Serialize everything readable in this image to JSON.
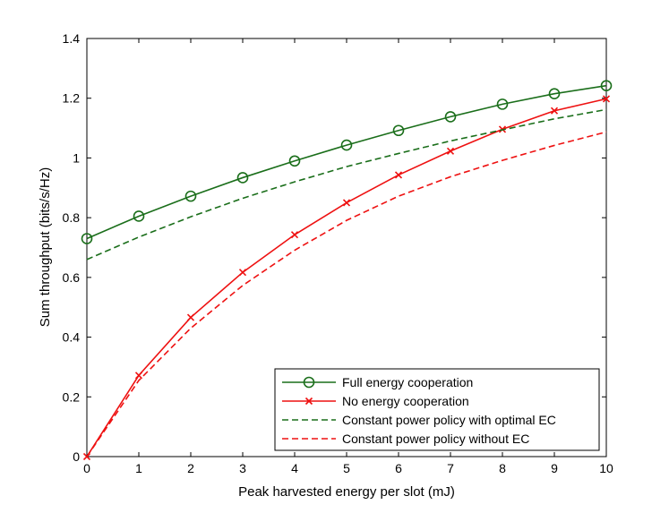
{
  "chart_data": {
    "type": "line",
    "title": "",
    "xlabel": "Peak harvested energy per slot (mJ)",
    "ylabel": "Sum throughput (bits/s/Hz)",
    "xlim": [
      0,
      10
    ],
    "ylim": [
      0,
      1.4
    ],
    "x_ticks": [
      0,
      1,
      2,
      3,
      4,
      5,
      6,
      7,
      8,
      9,
      10
    ],
    "y_ticks": [
      0,
      0.2,
      0.4,
      0.6,
      0.8,
      1,
      1.2,
      1.4
    ],
    "x_tick_labels": [
      "0",
      "1",
      "2",
      "3",
      "4",
      "5",
      "6",
      "7",
      "8",
      "9",
      "10"
    ],
    "y_tick_labels": [
      "0",
      "0.2",
      "0.4",
      "0.6",
      "0.8",
      "1",
      "1.2",
      "1.4"
    ],
    "grid": false,
    "legend_position": "bottom-right",
    "x": [
      0,
      1,
      2,
      3,
      4,
      5,
      6,
      7,
      8,
      9,
      10
    ],
    "series": [
      {
        "name": "Full energy cooperation",
        "color": "#1a6e1a",
        "line_style": "solid",
        "marker": "circle",
        "values": [
          0.73,
          0.805,
          0.872,
          0.934,
          0.99,
          1.043,
          1.092,
          1.138,
          1.18,
          1.215,
          1.242
        ]
      },
      {
        "name": "No energy cooperation",
        "color": "#ee1111",
        "line_style": "solid",
        "marker": "x",
        "values": [
          0.0,
          0.272,
          0.466,
          0.617,
          0.743,
          0.85,
          0.943,
          1.023,
          1.096,
          1.158,
          1.198
        ]
      },
      {
        "name": "Constant power policy with optimal EC",
        "color": "#1a6e1a",
        "line_style": "dashed",
        "marker": "none",
        "values": [
          0.66,
          0.735,
          0.803,
          0.865,
          0.92,
          0.971,
          1.015,
          1.057,
          1.094,
          1.131,
          1.162
        ]
      },
      {
        "name": "Constant power policy without EC",
        "color": "#ee1111",
        "line_style": "dashed",
        "marker": "none",
        "values": [
          0.0,
          0.255,
          0.43,
          0.573,
          0.691,
          0.791,
          0.872,
          0.937,
          0.992,
          1.042,
          1.087
        ]
      }
    ]
  }
}
